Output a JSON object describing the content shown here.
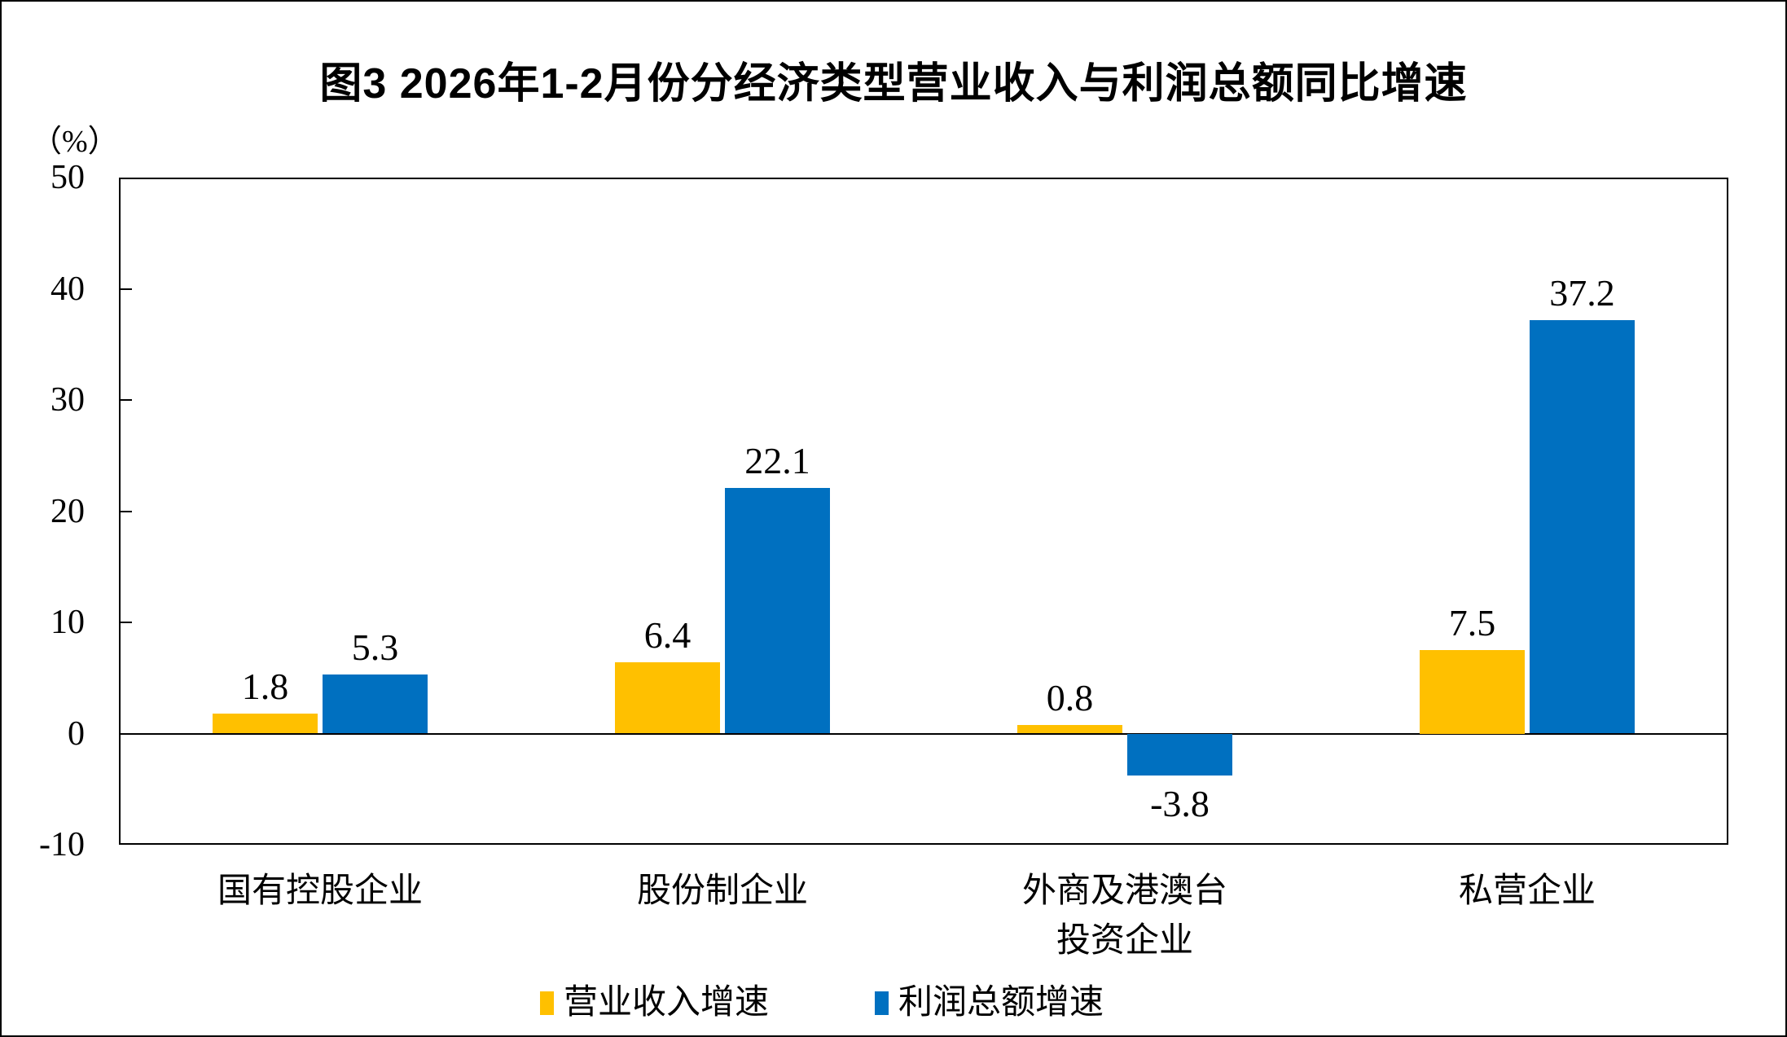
{
  "chart_data": {
    "type": "bar",
    "title": "图3  2026年1-2月份分经济类型营业收入与利润总额同比增速",
    "unit_label": "（%）",
    "categories": [
      "国有控股企业",
      "股份制企业",
      "外商及港澳台\n投资企业",
      "私营企业"
    ],
    "series": [
      {
        "name": "营业收入增速",
        "color": "#FFC000",
        "values": [
          1.8,
          6.4,
          0.8,
          7.5
        ]
      },
      {
        "name": "利润总额增速",
        "color": "#0070C0",
        "values": [
          5.3,
          22.1,
          -3.8,
          37.2
        ]
      }
    ],
    "ylim": [
      -10,
      50
    ],
    "yticks": [
      50,
      40,
      30,
      20,
      10,
      0,
      -10
    ],
    "grid": false,
    "legend_position": "bottom",
    "colors": {
      "axis": "#000000",
      "background": "#ffffff"
    }
  }
}
